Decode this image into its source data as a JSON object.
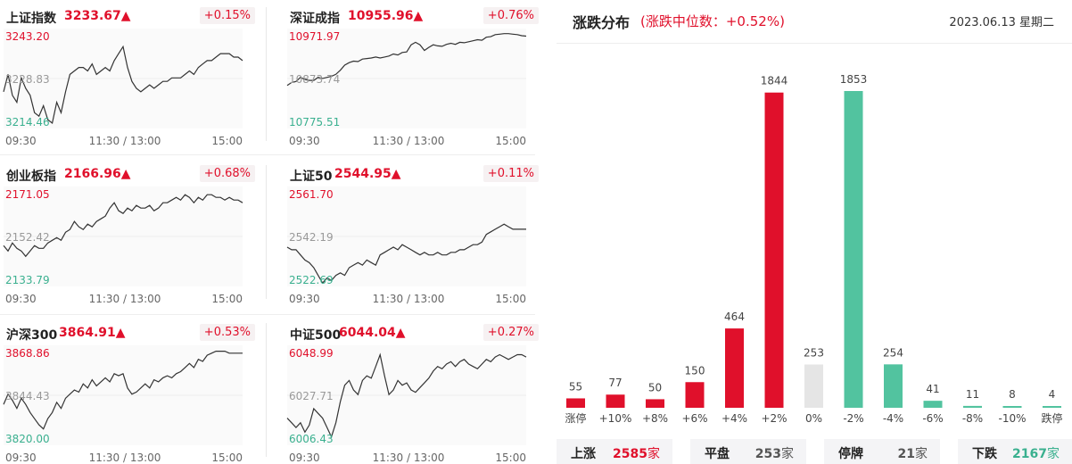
{
  "indices": [
    {
      "name": "上证指数",
      "price": "3233.67▲",
      "change": "+0.15%",
      "high": "3243.20",
      "mid": "3228.83",
      "low": "3214.46",
      "series": [
        3225,
        3230,
        3224,
        3222,
        3229,
        3226,
        3224,
        3219,
        3218,
        3221,
        3217,
        3216,
        3222,
        3219,
        3225,
        3230,
        3231,
        3232,
        3232,
        3231,
        3233,
        3230,
        3231,
        3232,
        3231,
        3234,
        3236,
        3238,
        3232,
        3228,
        3226,
        3225,
        3226,
        3227,
        3226,
        3227,
        3228,
        3228,
        3229,
        3229,
        3229,
        3230,
        3231,
        3230,
        3232,
        3233,
        3234,
        3234,
        3235,
        3236,
        3236,
        3236,
        3235,
        3235,
        3234
      ]
    },
    {
      "name": "深证成指",
      "price": "10955.96▲",
      "change": "+0.76%",
      "high": "10971.97",
      "mid": "10873.74",
      "low": "10775.51",
      "series": [
        10860,
        10866,
        10868,
        10876,
        10872,
        10870,
        10870,
        10876,
        10874,
        10876,
        10878,
        10882,
        10890,
        10900,
        10905,
        10908,
        10907,
        10912,
        10913,
        10914,
        10916,
        10914,
        10916,
        10918,
        10922,
        10920,
        10925,
        10926,
        10940,
        10945,
        10940,
        10929,
        10935,
        10940,
        10938,
        10937,
        10941,
        10943,
        10941,
        10945,
        10944,
        10946,
        10948,
        10950,
        10949,
        10955,
        10956,
        10960,
        10961,
        10962,
        10962,
        10961,
        10960,
        10958,
        10957
      ]
    },
    {
      "name": "创业板指",
      "price": "2166.96▲",
      "change": "+0.68%",
      "high": "2171.05",
      "mid": "2152.42",
      "low": "2133.79",
      "series": [
        2149,
        2147,
        2150,
        2148,
        2147,
        2145,
        2147,
        2149,
        2148,
        2148,
        2150,
        2151,
        2152,
        2151,
        2154,
        2155,
        2158,
        2156,
        2155,
        2157,
        2156,
        2158,
        2159,
        2160,
        2163,
        2165,
        2162,
        2161,
        2163,
        2162,
        2164,
        2163,
        2163,
        2164,
        2162,
        2163,
        2165,
        2165,
        2166,
        2167,
        2166,
        2168,
        2167,
        2165,
        2167,
        2166,
        2168,
        2168,
        2167,
        2167,
        2166,
        2167,
        2166,
        2166,
        2165
      ]
    },
    {
      "name": "上证50",
      "price": "2544.95▲",
      "change": "+0.11%",
      "high": "2561.70",
      "mid": "2542.19",
      "low": "2522.69",
      "series": [
        2538,
        2537,
        2537,
        2535,
        2533,
        2532,
        2530,
        2527,
        2524,
        2526,
        2525,
        2527,
        2528,
        2527,
        2530,
        2531,
        2532,
        2531,
        2533,
        2532,
        2531,
        2535,
        2536,
        2537,
        2538,
        2537,
        2539,
        2538,
        2537,
        2536,
        2535,
        2536,
        2535,
        2535,
        2536,
        2535,
        2535,
        2536,
        2536,
        2537,
        2537,
        2538,
        2539,
        2539,
        2540,
        2543,
        2544,
        2545,
        2546,
        2547,
        2546,
        2545,
        2545,
        2545,
        2545
      ]
    },
    {
      "name": "沪深300",
      "price": "3864.91▲",
      "change": "+0.53%",
      "high": "3868.86",
      "mid": "3844.43",
      "low": "3820.00",
      "series": [
        3840,
        3845,
        3842,
        3838,
        3843,
        3840,
        3836,
        3833,
        3830,
        3828,
        3833,
        3836,
        3841,
        3838,
        3843,
        3845,
        3847,
        3846,
        3850,
        3848,
        3852,
        3849,
        3851,
        3853,
        3851,
        3855,
        3854,
        3855,
        3848,
        3845,
        3846,
        3848,
        3850,
        3848,
        3852,
        3851,
        3853,
        3854,
        3853,
        3855,
        3856,
        3858,
        3860,
        3858,
        3862,
        3861,
        3864,
        3865,
        3866,
        3866,
        3866,
        3865,
        3865,
        3865,
        3865
      ]
    },
    {
      "name": "中证500",
      "price": "6044.04▲",
      "change": "+0.27%",
      "high": "6048.99",
      "mid": "6027.71",
      "low": "6006.43",
      "series": [
        6018,
        6016,
        6014,
        6016,
        6012,
        6015,
        6022,
        6020,
        6018,
        6014,
        6010,
        6016,
        6025,
        6032,
        6034,
        6030,
        6028,
        6034,
        6036,
        6035,
        6040,
        6045,
        6036,
        6028,
        6030,
        6034,
        6032,
        6033,
        6030,
        6029,
        6031,
        6033,
        6035,
        6038,
        6040,
        6039,
        6041,
        6042,
        6040,
        6042,
        6043,
        6041,
        6040,
        6039,
        6041,
        6043,
        6042,
        6044,
        6045,
        6044,
        6043,
        6044,
        6045,
        6045,
        6044
      ]
    }
  ],
  "time_axis": {
    "start": "09:30",
    "mid": "11:30 / 13:00",
    "end": "15:00"
  },
  "distribution": {
    "title": "涨跌分布",
    "subtitle": "(涨跌中位数：+0.52%)",
    "date": "2023.06.13 星期二",
    "colors": {
      "up": "#e0102b",
      "flat": "#e5e5e5",
      "down": "#52c39f"
    },
    "chart_data": {
      "type": "bar",
      "categories": [
        "涨停",
        "+10%",
        "+8%",
        "+6%",
        "+4%",
        "+2%",
        "0%",
        "-2%",
        "-4%",
        "-6%",
        "-8%",
        "-10%",
        "跌停"
      ],
      "values": [
        55,
        77,
        50,
        150,
        464,
        1844,
        253,
        1853,
        254,
        41,
        11,
        8,
        4
      ],
      "color_groups": [
        "up",
        "up",
        "up",
        "up",
        "up",
        "up",
        "flat",
        "down",
        "down",
        "down",
        "down",
        "down",
        "down"
      ]
    }
  },
  "summary": [
    {
      "label": "上涨",
      "value": "2585",
      "unit": "家",
      "color": "#e0102b"
    },
    {
      "label": "平盘",
      "value": "253",
      "unit": "家",
      "color": "#555555"
    },
    {
      "label": "停牌",
      "value": "21",
      "unit": "家",
      "color": "#555555"
    },
    {
      "label": "下跌",
      "value": "2167",
      "unit": "家",
      "color": "#3ab08f"
    }
  ]
}
